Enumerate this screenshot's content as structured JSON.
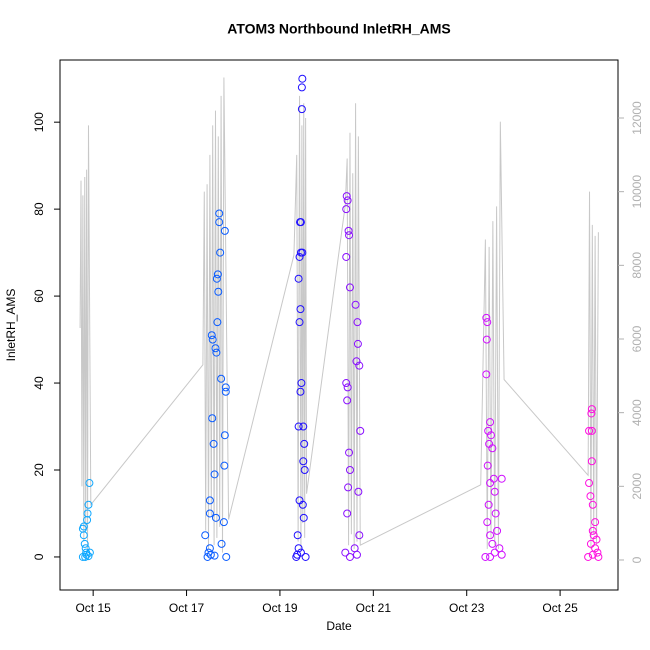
{
  "chart_data": {
    "type": "scatter",
    "title": "ATOM3 Northbound InletRH_AMS",
    "xlabel": "Date",
    "ylabel": "InletRH_AMS",
    "xlim": [
      14.29,
      26.24
    ],
    "xticks": [
      {
        "value": 15,
        "label": "Oct 15"
      },
      {
        "value": 17,
        "label": "Oct 17"
      },
      {
        "value": 19,
        "label": "Oct 19"
      },
      {
        "value": 21,
        "label": "Oct 21"
      },
      {
        "value": 23,
        "label": "Oct 23"
      },
      {
        "value": 25,
        "label": "Oct 25"
      }
    ],
    "ylim": [
      -7.6,
      114.3
    ],
    "yticks": [
      0,
      20,
      40,
      60,
      80,
      100
    ],
    "y2lim": [
      -815,
      13575
    ],
    "y2ticks": [
      0,
      2000,
      4000,
      6000,
      8000,
      10000,
      12000
    ],
    "series": [
      {
        "type": "scatter",
        "color": "#10a8ff",
        "x": [
          14.78,
          14.8,
          14.82,
          14.83,
          14.85,
          14.86,
          14.88,
          14.9,
          14.92,
          14.8,
          14.84,
          14.87,
          14.9,
          14.78,
          14.93
        ],
        "values": [
          6.5,
          5,
          3,
          0,
          1,
          0.5,
          10,
          12,
          17,
          7,
          2,
          8.5,
          0.2,
          0,
          1
        ]
      },
      {
        "type": "scatter",
        "color": "#0a5cff",
        "x": [
          17.45,
          17.47,
          17.5,
          17.52,
          17.5,
          17.54,
          17.56,
          17.55,
          17.58,
          17.6,
          17.62,
          17.64,
          17.65,
          17.67,
          17.68,
          17.7,
          17.7,
          17.72,
          17.66,
          17.74,
          17.63,
          17.5,
          17.82,
          17.82,
          17.81,
          17.84,
          17.84,
          17.8,
          17.85,
          17.75,
          17.4,
          17.6
        ],
        "values": [
          0,
          1,
          2,
          0.5,
          13,
          51,
          50,
          31.9,
          26,
          19,
          48,
          47,
          64,
          65,
          61,
          77,
          79,
          70,
          54,
          41,
          9,
          10,
          75,
          28,
          21,
          39,
          38,
          8,
          0,
          3,
          5,
          0.3
        ]
      },
      {
        "type": "scatter",
        "color": "#2010ff",
        "x": [
          19.35,
          19.37,
          19.4,
          19.38,
          19.42,
          19.4,
          19.44,
          19.42,
          19.44,
          19.4,
          19.42,
          19.45,
          19.43,
          19.45,
          19.47,
          19.47,
          19.48,
          19.48,
          19.46,
          19.5,
          19.52,
          19.5,
          19.53,
          19.49,
          19.51,
          19.55,
          19.45
        ],
        "values": [
          0,
          0.5,
          2,
          5,
          13,
          30,
          38,
          54,
          57,
          64,
          69,
          70,
          77,
          77,
          103,
          108,
          110,
          70,
          40,
          30,
          26,
          22,
          20,
          12,
          9,
          0,
          1
        ]
      },
      {
        "type": "scatter",
        "color": "#8a10ff",
        "x": [
          20.43,
          20.45,
          20.42,
          20.47,
          20.48,
          20.42,
          20.5,
          20.62,
          20.66,
          20.67,
          20.64,
          20.7,
          20.42,
          20.45,
          20.44,
          20.72,
          20.48,
          20.5,
          20.46,
          20.68,
          20.44,
          20.7,
          20.6,
          20.5,
          20.65,
          20.4
        ],
        "values": [
          83,
          82,
          80,
          75,
          74,
          69,
          62,
          58,
          54,
          49,
          45,
          44,
          40,
          39,
          36,
          29,
          24,
          20,
          16,
          15,
          10,
          5,
          2,
          0,
          0.5,
          1
        ]
      },
      {
        "type": "scatter",
        "color": "#d010ff",
        "x": [
          23.42,
          23.44,
          23.43,
          23.42,
          23.5,
          23.46,
          23.52,
          23.48,
          23.55,
          23.45,
          23.58,
          23.5,
          23.6,
          23.47,
          23.62,
          23.44,
          23.65,
          23.5,
          23.55,
          23.7,
          23.6,
          23.5,
          23.75,
          23.4,
          23.75
        ],
        "values": [
          55,
          54,
          50,
          42,
          31,
          29,
          28,
          26,
          25,
          21,
          18,
          17,
          15,
          12,
          10,
          8,
          6,
          5,
          3,
          2,
          1,
          0,
          0.5,
          0,
          18
        ]
      },
      {
        "type": "scatter",
        "color": "#ff10e0",
        "x": [
          25.68,
          25.67,
          25.62,
          25.68,
          25.68,
          25.62,
          25.65,
          25.7,
          25.75,
          25.7,
          25.72,
          25.78,
          25.66,
          25.75,
          25.8,
          25.6,
          25.7,
          25.82
        ],
        "values": [
          34,
          33,
          29,
          29,
          22,
          17,
          14,
          12,
          8,
          6,
          5,
          4,
          3,
          2,
          1,
          0,
          0.5,
          0
        ]
      },
      {
        "type": "line",
        "axis": "y2",
        "color": "#c8c8c8",
        "x": [
          14.72,
          14.74,
          14.76,
          14.78,
          14.8,
          14.82,
          14.84,
          14.86,
          14.88,
          14.9,
          14.95,
          17.35,
          17.38,
          17.41,
          17.44,
          17.47,
          17.5,
          17.53,
          17.56,
          17.59,
          17.62,
          17.65,
          17.68,
          17.71,
          17.74,
          17.77,
          17.8,
          17.9,
          19.3,
          19.36,
          19.39,
          19.42,
          19.45,
          19.47,
          19.49,
          19.51,
          19.53,
          19.55,
          19.57,
          20.4,
          20.44,
          20.47,
          20.5,
          20.53,
          20.56,
          20.59,
          20.62,
          20.65,
          20.68,
          20.72,
          23.3,
          23.4,
          23.44,
          23.48,
          23.52,
          23.56,
          23.6,
          23.64,
          23.68,
          23.72,
          23.8,
          25.6,
          25.63,
          25.66,
          25.69,
          25.72,
          25.75,
          25.78,
          25.82
        ],
        "values": [
          6300,
          10300,
          2000,
          9900,
          500,
          10400,
          800,
          10600,
          300,
          11800,
          1500,
          5300,
          10000,
          800,
          10200,
          300,
          11000,
          1200,
          11800,
          400,
          12200,
          600,
          11500,
          900,
          12600,
          200,
          13100,
          1100,
          8280,
          11000,
          500,
          12600,
          300,
          11800,
          1000,
          12400,
          600,
          12000,
          1800,
          9640,
          10900,
          400,
          11600,
          700,
          10500,
          300,
          12400,
          500,
          11500,
          400,
          2040,
          8700,
          300,
          8500,
          600,
          9200,
          400,
          9600,
          300,
          11900,
          4900,
          2300,
          10000,
          300,
          9100,
          700,
          8800,
          400,
          8900
        ]
      }
    ]
  }
}
